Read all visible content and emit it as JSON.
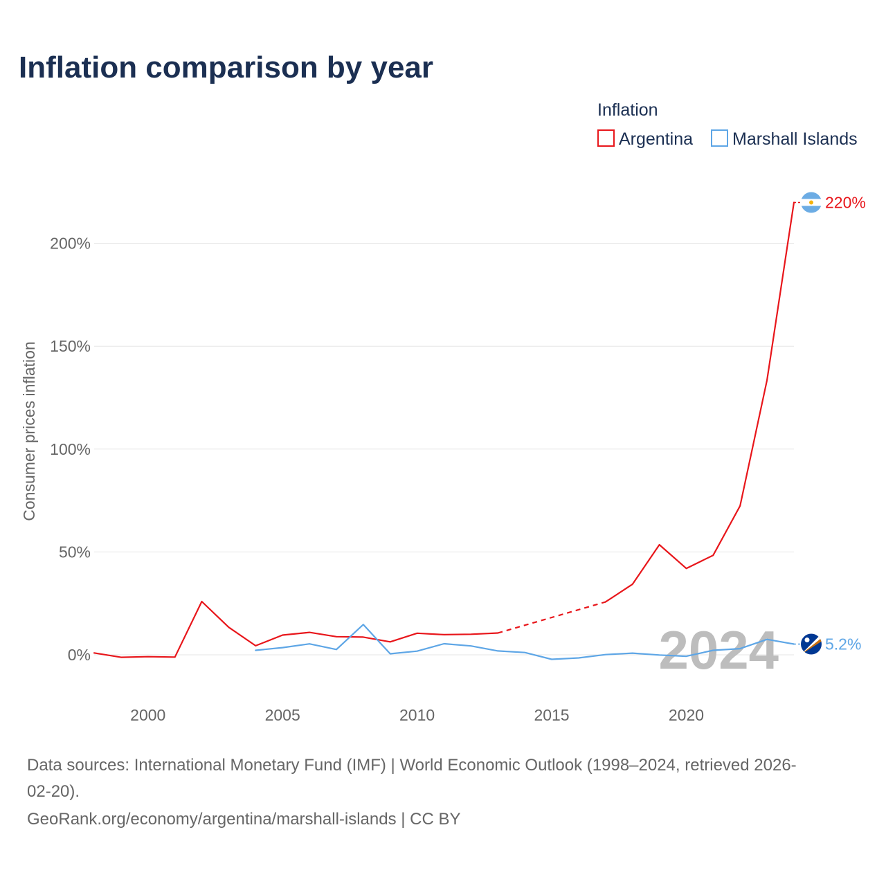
{
  "chart_data": {
    "type": "line",
    "title": "Inflation comparison by year",
    "legend_title": "Inflation",
    "legend_position": "top-right",
    "ylabel": "Consumer prices inflation",
    "xlabel": "",
    "xlim": [
      1998,
      2024
    ],
    "ylim": [
      -15,
      220
    ],
    "x_ticks": [
      2000,
      2005,
      2010,
      2015,
      2020
    ],
    "x_tick_labels": [
      "2000",
      "2005",
      "2010",
      "2015",
      "2020"
    ],
    "y_ticks": [
      0,
      50,
      100,
      150,
      200
    ],
    "y_tick_labels": [
      "0%",
      "50%",
      "100%",
      "150%",
      "200%"
    ],
    "grid": true,
    "highlight_year": "2024",
    "series": [
      {
        "name": "Argentina",
        "color": "#e8161b",
        "flag": "argentina-flag-icon",
        "end_label": "220%",
        "x": [
          1998,
          1999,
          2000,
          2001,
          2002,
          2003,
          2004,
          2005,
          2006,
          2007,
          2008,
          2009,
          2010,
          2011,
          2012,
          2013,
          2017,
          2018,
          2019,
          2020,
          2021,
          2022,
          2023,
          2024
        ],
        "values": [
          0.9,
          -1.2,
          -0.9,
          -1.1,
          25.9,
          13.4,
          4.4,
          9.6,
          10.9,
          8.8,
          8.6,
          6.3,
          10.5,
          9.8,
          10.0,
          10.6,
          25.7,
          34.3,
          53.5,
          42.0,
          48.4,
          72.4,
          133.5,
          219.9
        ],
        "dashed_gap": [
          [
            2013,
            10.6
          ],
          [
            2017,
            25.7
          ]
        ]
      },
      {
        "name": "Marshall Islands",
        "color": "#5ea6e6",
        "flag": "marshall-islands-flag-icon",
        "end_label": "5.2%",
        "x": [
          2004,
          2005,
          2006,
          2007,
          2008,
          2009,
          2010,
          2011,
          2012,
          2013,
          2014,
          2015,
          2016,
          2017,
          2018,
          2019,
          2020,
          2021,
          2022,
          2023,
          2024
        ],
        "values": [
          2.2,
          3.5,
          5.3,
          2.6,
          14.7,
          0.5,
          1.8,
          5.4,
          4.3,
          1.9,
          1.1,
          -2.2,
          -1.5,
          0.1,
          0.8,
          -0.1,
          -0.7,
          2.2,
          3.0,
          7.5,
          5.2
        ]
      }
    ]
  },
  "footer": {
    "sources_line1": "Data sources: International Monetary Fund (IMF) | World Economic Outlook (1998–2024, retrieved 2026-",
    "sources_line2": "02-20).",
    "credit": "GeoRank.org/economy/argentina/marshall-islands | CC BY"
  }
}
